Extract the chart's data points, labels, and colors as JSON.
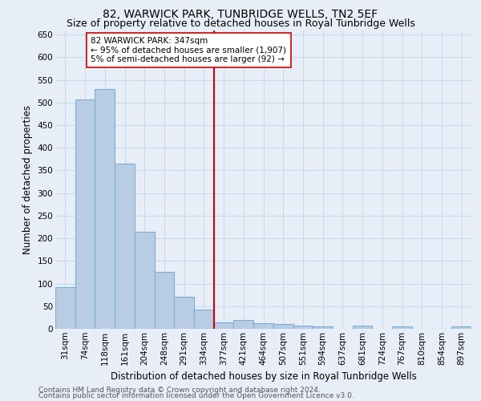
{
  "title1": "82, WARWICK PARK, TUNBRIDGE WELLS, TN2 5EF",
  "title2": "Size of property relative to detached houses in Royal Tunbridge Wells",
  "xlabel": "Distribution of detached houses by size in Royal Tunbridge Wells",
  "ylabel": "Number of detached properties",
  "footer1": "Contains HM Land Registry data © Crown copyright and database right 2024.",
  "footer2": "Contains public sector information licensed under the Open Government Licence v3.0.",
  "categories": [
    "31sqm",
    "74sqm",
    "118sqm",
    "161sqm",
    "204sqm",
    "248sqm",
    "291sqm",
    "334sqm",
    "377sqm",
    "421sqm",
    "464sqm",
    "507sqm",
    "551sqm",
    "594sqm",
    "637sqm",
    "681sqm",
    "724sqm",
    "767sqm",
    "810sqm",
    "854sqm",
    "897sqm"
  ],
  "values": [
    92,
    507,
    530,
    365,
    215,
    125,
    70,
    43,
    15,
    20,
    12,
    10,
    7,
    5,
    0,
    7,
    0,
    5,
    0,
    0,
    5
  ],
  "bar_color": "#b8cce4",
  "bar_edgecolor": "#7bafd4",
  "bar_linewidth": 0.8,
  "vline_x": 7.5,
  "vline_color": "#cc0000",
  "vline_linewidth": 1.5,
  "annotation_text1": "82 WARWICK PARK: 347sqm",
  "annotation_text2": "← 95% of detached houses are smaller (1,907)",
  "annotation_text3": "5% of semi-detached houses are larger (92) →",
  "annotation_box_edgecolor": "#cc0000",
  "annotation_box_facecolor": "white",
  "ylim": [
    0,
    660
  ],
  "yticks": [
    0,
    50,
    100,
    150,
    200,
    250,
    300,
    350,
    400,
    450,
    500,
    550,
    600,
    650
  ],
  "grid_color": "#c8d8e8",
  "background_color": "#e8eef8",
  "plot_background_color": "#e8eef8",
  "title_fontsize": 10,
  "subtitle_fontsize": 9,
  "tick_fontsize": 7.5,
  "ylabel_fontsize": 8.5,
  "xlabel_fontsize": 8.5,
  "annotation_fontsize": 7.5,
  "footer_fontsize": 6.5
}
